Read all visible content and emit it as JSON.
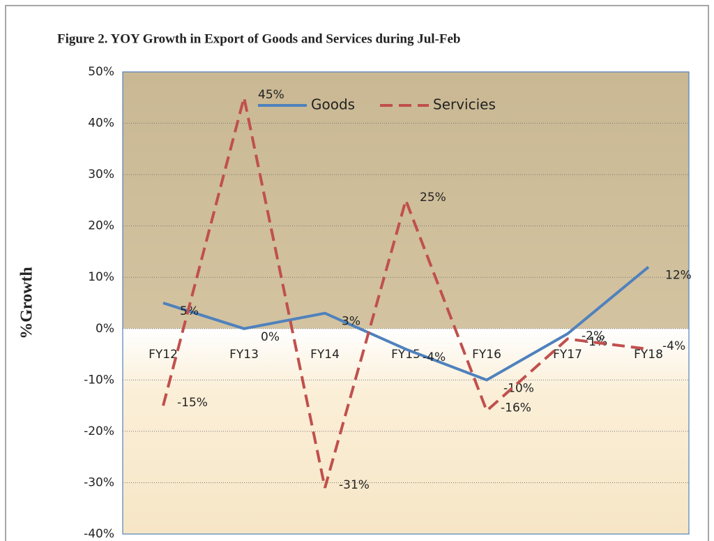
{
  "chart_data": {
    "type": "line",
    "title": "Figure 2. YOY Growth in Export of Goods and Services during Jul-Feb",
    "y_label": "%Growth",
    "categories": [
      "FY12",
      "FY13",
      "FY14",
      "FY15",
      "FY16",
      "FY17",
      "FY18"
    ],
    "series": [
      {
        "name": "Goods",
        "color": "#4f81bd",
        "dash": false,
        "values": [
          5,
          0,
          3,
          -4,
          -10,
          -1,
          12
        ],
        "value_labels": [
          "5%",
          "0%",
          "3%",
          "-4%",
          "-10%",
          "-1%",
          "12%"
        ]
      },
      {
        "name": "Servicies",
        "color": "#c0504d",
        "dash": true,
        "values": [
          -15,
          45,
          -31,
          25,
          -16,
          -2,
          -4
        ],
        "value_labels": [
          "-15%",
          "45%",
          "-31%",
          "25%",
          "-16%",
          "-2%",
          "-4%"
        ]
      }
    ],
    "ylim": [
      -40,
      50
    ],
    "yticks": [
      {
        "value": -40,
        "label": "-40%"
      },
      {
        "value": -30,
        "label": "-30%"
      },
      {
        "value": -20,
        "label": "-20%"
      },
      {
        "value": -10,
        "label": "-10%"
      },
      {
        "value": 0,
        "label": "0%"
      },
      {
        "value": 10,
        "label": "10%"
      },
      {
        "value": 20,
        "label": "20%"
      },
      {
        "value": 30,
        "label": "30%"
      },
      {
        "value": 40,
        "label": "40%"
      },
      {
        "value": 50,
        "label": "50%"
      }
    ],
    "grid": true,
    "legend": "top"
  }
}
